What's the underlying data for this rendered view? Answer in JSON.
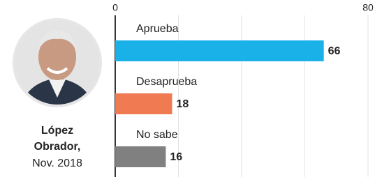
{
  "chart_data": {
    "type": "bar",
    "orientation": "horizontal",
    "subject": {
      "name_lines": [
        "López",
        "Obrador,"
      ],
      "date": "Nov. 2018"
    },
    "categories": [
      "Aprueba",
      "Desaprueba",
      "No sabe"
    ],
    "values": [
      66,
      18,
      16
    ],
    "colors": [
      "#1ab0e8",
      "#f07a52",
      "#808080"
    ],
    "xlim": [
      0,
      80
    ],
    "xticks": [
      0,
      80
    ],
    "grid_lines": [
      20,
      40,
      60
    ]
  }
}
